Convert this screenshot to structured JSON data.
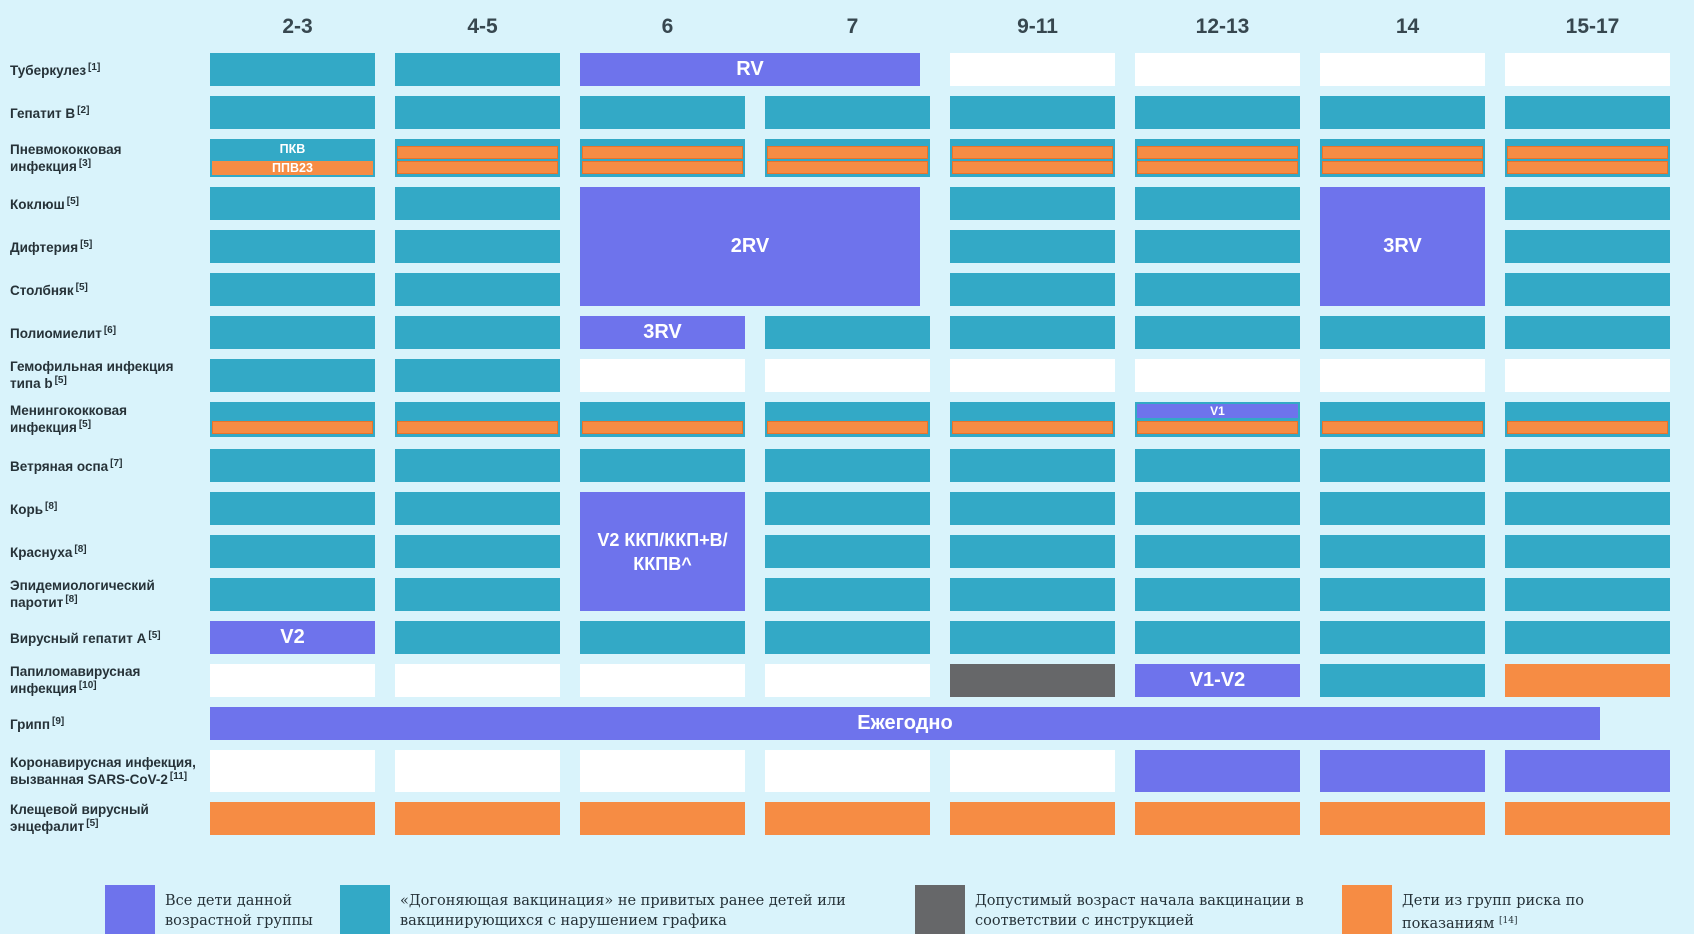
{
  "chart_data": {
    "type": "table",
    "age_columns": [
      "2-3",
      "4-5",
      "6",
      "7",
      "9-11",
      "12-13",
      "14",
      "15-17"
    ],
    "rows": [
      {
        "label": "Туберкулез",
        "ref": "[1]"
      },
      {
        "label": "Гепатит В",
        "ref": "[2]"
      },
      {
        "label": "Пневмококковая инфекция",
        "ref": "[3]"
      },
      {
        "label": "Коклюш",
        "ref": "[5]"
      },
      {
        "label": "Дифтерия",
        "ref": "[5]"
      },
      {
        "label": "Столбняк",
        "ref": "[5]"
      },
      {
        "label": "Полиомиелит",
        "ref": "[6]"
      },
      {
        "label": "Гемофильная инфекция типа b",
        "ref": "[5]"
      },
      {
        "label": "Менингококковая инфекция",
        "ref": "[5]"
      },
      {
        "label": "Ветряная оспа",
        "ref": "[7]"
      },
      {
        "label": "Корь",
        "ref": "[8]"
      },
      {
        "label": "Краснуха",
        "ref": "[8]"
      },
      {
        "label": "Эпидемиологический паротит",
        "ref": "[8]"
      },
      {
        "label": "Вирусный гепатит А",
        "ref": "[5]"
      },
      {
        "label": "Папиломавирусная инфекция",
        "ref": "[10]"
      },
      {
        "label": "Грипп",
        "ref": "[9]"
      },
      {
        "label": "Коронавирусная инфекция, вызванная SARS-CoV-2",
        "ref": "[11]"
      },
      {
        "label": "Клещевой вирусный энцефалит",
        "ref": "[5]"
      }
    ],
    "cells": [
      [
        "T",
        "T",
        {
          "c": "P",
          "span": 2,
          "text": "RV"
        },
        null,
        "W",
        "W",
        "W",
        "W"
      ],
      [
        "T",
        "T",
        "T",
        "T",
        "T",
        "T",
        "T",
        "T"
      ],
      [
        {
          "c": "split",
          "top": "ПКВ",
          "bottom": "ППВ23"
        },
        "O2",
        "O2",
        "O2",
        "O2",
        "O2",
        "O2",
        "O2"
      ],
      [
        "T",
        "T",
        {
          "c": "P",
          "span": 2,
          "rowspan": 3,
          "text": "2RV"
        },
        null,
        "T",
        "T",
        {
          "c": "P",
          "rowspan": 3,
          "text": "3RV"
        },
        "T"
      ],
      [
        "T",
        "T",
        null,
        null,
        "T",
        "T",
        null,
        "T"
      ],
      [
        "T",
        "T",
        null,
        null,
        "T",
        "T",
        null,
        "T"
      ],
      [
        "T",
        "T",
        {
          "c": "P",
          "text": "3RV"
        },
        "T",
        "T",
        "T",
        "T",
        "T"
      ],
      [
        "T",
        "T",
        "W",
        "W",
        "W",
        "W",
        "W",
        "W"
      ],
      [
        "O1",
        "O1",
        "O1",
        "O1",
        "O1",
        {
          "c": "PO",
          "text": "V1"
        },
        "O1",
        "O1"
      ],
      [
        "T",
        "T",
        "T",
        "T",
        "T",
        "T",
        "T",
        "T"
      ],
      [
        "T",
        "T",
        {
          "c": "P",
          "rowspan": 3,
          "text": "V2 ККП/ККП+В/ККПВ^"
        },
        "T",
        "T",
        "T",
        "T",
        "T"
      ],
      [
        "T",
        "T",
        null,
        "T",
        "T",
        "T",
        "T",
        "T"
      ],
      [
        "T",
        "T",
        null,
        "T",
        "T",
        "T",
        "T",
        "T"
      ],
      [
        {
          "c": "P",
          "text": "V2"
        },
        "T",
        "T",
        "T",
        "T",
        "T",
        "T",
        "T"
      ],
      [
        "W",
        "W",
        "W",
        "W",
        "G",
        {
          "c": "P",
          "text": "V1-V2"
        },
        "T",
        "O"
      ],
      [
        {
          "c": "P",
          "span": 8,
          "text": "Ежегодно"
        },
        null,
        null,
        null,
        null,
        null,
        null,
        null
      ],
      [
        "W",
        "W",
        "W",
        "W",
        "W",
        "P",
        "P",
        "P"
      ],
      [
        "O",
        "O",
        "O",
        "O",
        "O",
        "O",
        "O",
        "O"
      ]
    ],
    "colors": {
      "P": "#6e73ec",
      "T": "#33a9c6",
      "G": "#666769",
      "O": "#f68c44",
      "W": "#ffffff"
    }
  },
  "legend": [
    {
      "color": "#6e73ec",
      "line1": "Все дети данной",
      "line2": "возрастной группы",
      "sup": ""
    },
    {
      "color": "#33a9c6",
      "line1": "«Догоняющая вакцинация» не привитых ранее детей или",
      "line2": "вакцинирующихся с нарушением графика",
      "sup": ""
    },
    {
      "color": "#666769",
      "line1": "Допустимый возраст начала вакцинации в",
      "line2": "соответствии с инструкцией",
      "sup": ""
    },
    {
      "color": "#f68c44",
      "line1": "Дети из групп риска по",
      "line2": "показаниям",
      "sup": "[14]"
    }
  ]
}
